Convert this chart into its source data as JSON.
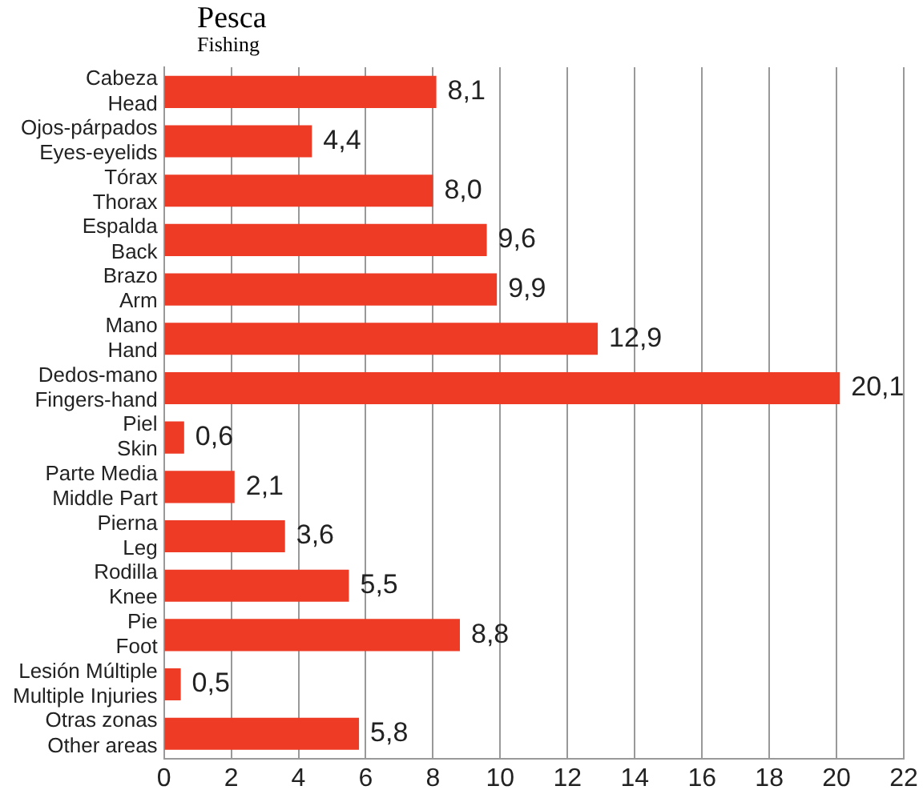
{
  "chart_data": {
    "type": "bar",
    "orientation": "horizontal",
    "title": "Pesca",
    "subtitle": "Fishing",
    "categories": [
      "Cabeza\nHead",
      "Ojos-párpados\nEyes-eyelids",
      "Tórax\nThorax",
      "Espalda\nBack",
      "Brazo\nArm",
      "Mano\nHand",
      "Dedos-mano\nFingers-hand",
      "Piel\nSkin",
      "Parte Media\nMiddle Part",
      "Pierna\nLeg",
      "Rodilla\nKnee",
      "Pie\nFoot",
      "Lesión Múltiple\nMultiple Injuries",
      "Otras zonas\nOther areas"
    ],
    "values": [
      8.1,
      4.4,
      8.0,
      9.6,
      9.9,
      12.9,
      20.1,
      0.6,
      2.1,
      3.6,
      5.5,
      8.8,
      0.5,
      5.8
    ],
    "value_labels": [
      "8,1",
      "4,4",
      "8,0",
      "9,6",
      "9,9",
      "12,9",
      "20,1",
      "0,6",
      "2,1",
      "3,6",
      "5,5",
      "8,8",
      "0,5",
      "5,8"
    ],
    "color": "#ee3b26",
    "xlim": [
      0,
      22
    ],
    "xticks": [
      0,
      2,
      4,
      6,
      8,
      10,
      12,
      14,
      16,
      18,
      20,
      22
    ],
    "grid": "x",
    "legend": false
  }
}
